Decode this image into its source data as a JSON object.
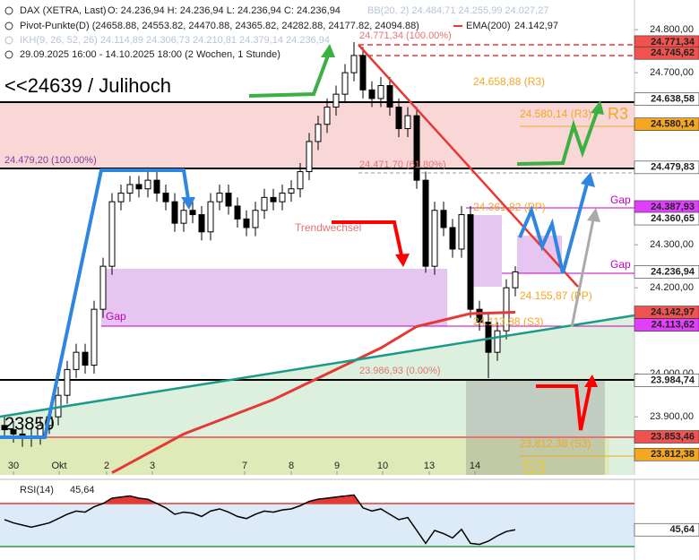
{
  "chart_data": [
    {
      "type": "candlestick",
      "title": "DAX (XETRA, Last)",
      "ohlc_label": "O: 24.236,94  H: 24.236,94  L: 24.236,94  C: 24.236,94",
      "bb_label": "BB(20, 2)  24.484,71  24.255,99  24.027,27",
      "pivot_label": "Pivot-Punkte(D)  (24658.88, 24553.82, 24470.88, 24365.82, 24282.88, 24177.82, 24094.88)",
      "ikh_label": "IKH(9, 26, 52, 26)  24.114,89  24.306,73  24.210,81  24.379,14  24.236,94",
      "period": "29.09.2025 16:00 - 14.10.2025 18:00  (2 Wochen, 1 Stunde)",
      "x": [
        0,
        1,
        2,
        3,
        4,
        5,
        6,
        7,
        8,
        9,
        10,
        11,
        12,
        13,
        14,
        15,
        16,
        17,
        18,
        19,
        20,
        21,
        22,
        23,
        24,
        25,
        26,
        27,
        28,
        29,
        30,
        31,
        32,
        33,
        34,
        35,
        36,
        37,
        38,
        39,
        40,
        41,
        42,
        43,
        44,
        45,
        46,
        47,
        48,
        49,
        50,
        51,
        52,
        53,
        54,
        55,
        56,
        57
      ],
      "open": [
        23880,
        23870,
        23860,
        23850,
        23855,
        23880,
        23900,
        23950,
        24010,
        24050,
        24020,
        24150,
        24250,
        24400,
        24420,
        24440,
        24430,
        24450,
        24420,
        24400,
        24350,
        24380,
        24370,
        24330,
        24400,
        24420,
        24390,
        24360,
        24340,
        24380,
        24410,
        24400,
        24420,
        24430,
        24470,
        24540,
        24580,
        24620,
        24650,
        24700,
        24740,
        24660,
        24640,
        24670,
        24620,
        24570,
        24600,
        24450,
        24250,
        24380,
        24340,
        24290,
        24370,
        24150,
        24120,
        24050,
        24100,
        24200
      ],
      "high": [
        23900,
        23890,
        23880,
        23875,
        23900,
        23920,
        23970,
        24030,
        24070,
        24070,
        24170,
        24270,
        24420,
        24440,
        24460,
        24460,
        24480,
        24470,
        24440,
        24420,
        24400,
        24400,
        24390,
        24420,
        24440,
        24440,
        24410,
        24380,
        24400,
        24430,
        24430,
        24440,
        24450,
        24490,
        24560,
        24600,
        24640,
        24670,
        24720,
        24771,
        24760,
        24680,
        24690,
        24690,
        24640,
        24620,
        24620,
        24470,
        24400,
        24400,
        24360,
        24390,
        24390,
        24170,
        24140,
        24120,
        24220,
        24250
      ],
      "low": [
        23850,
        23840,
        23830,
        23830,
        23835,
        23860,
        23880,
        23930,
        23990,
        24000,
        24000,
        24130,
        24230,
        24380,
        24400,
        24410,
        24410,
        24400,
        24380,
        24330,
        24330,
        24350,
        24310,
        24310,
        24380,
        24370,
        24340,
        24320,
        24320,
        24360,
        24380,
        24380,
        24400,
        24410,
        24450,
        24520,
        24560,
        24600,
        24630,
        24680,
        24640,
        24620,
        24620,
        24600,
        24550,
        24550,
        24430,
        24235,
        24230,
        24320,
        24270,
        24270,
        24130,
        24100,
        23990,
        24030,
        24080,
        24180
      ],
      "close": [
        23870,
        23860,
        23850,
        23855,
        23880,
        23900,
        23950,
        24010,
        24050,
        24020,
        24150,
        24250,
        24400,
        24420,
        24440,
        24430,
        24450,
        24420,
        24400,
        24350,
        24380,
        24370,
        24330,
        24400,
        24420,
        24390,
        24360,
        24340,
        24380,
        24410,
        24400,
        24420,
        24430,
        24470,
        24540,
        24580,
        24620,
        24650,
        24700,
        24740,
        24660,
        24640,
        24670,
        24620,
        24570,
        24600,
        24450,
        24250,
        24380,
        24340,
        24290,
        24370,
        24150,
        24120,
        24050,
        24100,
        24200,
        24237
      ],
      "ema": {
        "name": "EMA(200)",
        "color": "#e53935",
        "legend_value": "24.142,97",
        "x": [
          12,
          20,
          30,
          37,
          42,
          46,
          52,
          57
        ],
        "values": [
          23770,
          23860,
          23940,
          24010,
          24060,
          24110,
          24140,
          24143
        ]
      },
      "xlim": [
        -0.5,
        70.3
      ],
      "xticks": [
        {
          "value": 1,
          "label": "30"
        },
        {
          "value": 6.1,
          "label": "Okt"
        },
        {
          "value": 11.4,
          "label": "2"
        },
        {
          "value": 16.5,
          "label": "3"
        },
        {
          "value": 26.8,
          "label": "7"
        },
        {
          "value": 32,
          "label": "8"
        },
        {
          "value": 37.1,
          "label": "9"
        },
        {
          "value": 42.2,
          "label": "10"
        },
        {
          "value": 47.4,
          "label": "13"
        },
        {
          "value": 52.5,
          "label": "14"
        }
      ],
      "ylim": [
        23765,
        24869
      ],
      "yticks": [
        {
          "value": 24800,
          "label": "24.800,00"
        },
        {
          "value": 24700,
          "label": "24.700,00"
        },
        {
          "value": 24300,
          "label": "24.300,00"
        },
        {
          "value": 24200,
          "label": "24.200,00"
        },
        {
          "value": 24000,
          "label": "24.000,00"
        },
        {
          "value": 23900,
          "label": "23.900,00"
        }
      ],
      "levels": [
        {
          "value": 24771.34,
          "label": "24.771,34",
          "color": "#ef5350"
        },
        {
          "value": 24745.62,
          "label": "24.745,62",
          "color": "#ef5350"
        },
        {
          "value": 24638.58,
          "label": "24.638,58",
          "color": "#ffffff"
        },
        {
          "value": 24580.14,
          "label": "24.580,14",
          "color": "#f5a623"
        },
        {
          "value": 24479.83,
          "label": "24.479,83",
          "color": "#ffffff"
        },
        {
          "value": 24387.93,
          "label": "24.387,93",
          "color": "#e040fb"
        },
        {
          "value": 24360.65,
          "label": "24.360,65",
          "color": "#ffffff"
        },
        {
          "value": 24236.94,
          "label": "24.236,94",
          "color": "#ffffff"
        },
        {
          "value": 24142.97,
          "label": "24.142,97",
          "color": "#ef5350"
        },
        {
          "value": 24113.62,
          "label": "24.113,62",
          "color": "#e040fb"
        },
        {
          "value": 23984.74,
          "label": "23.984,74",
          "color": "#ffffff"
        },
        {
          "value": 23853.46,
          "label": "23.853,46",
          "color": "#ef5350"
        },
        {
          "value": 23812.38,
          "label": "23.812,38",
          "color": "#f5a623"
        }
      ],
      "annotations": [
        "<<24639 / Julihoch",
        "23850",
        "R3",
        "S3",
        "Gap",
        "Gap",
        "Gap",
        "Trendwechsel",
        "24.479,20 (100.00%)",
        "24.471,70 (61.80%)",
        "24.771,34 (100.00%)",
        "23.986,93 (0.00%)",
        "24.658,88 (R3)",
        "24.580,14 (R3)",
        "24.361,82 (PP)",
        "24.155,87 (PP)",
        "24.113,88 (S3)",
        "23.812,38 (S3)"
      ],
      "grid": false
    },
    {
      "type": "line",
      "title": "RSI(14)",
      "x": [
        0,
        1,
        2,
        3,
        4,
        5,
        6,
        7,
        8,
        9,
        10,
        11,
        12,
        13,
        14,
        15,
        16,
        17,
        18,
        19,
        20,
        21,
        22,
        23,
        24,
        25,
        26,
        27,
        28,
        29,
        30,
        31,
        32,
        33,
        34,
        35,
        36,
        37,
        38,
        39,
        40,
        41,
        42,
        43,
        44,
        45,
        46,
        47,
        48,
        49,
        50,
        51,
        52,
        53,
        54,
        55,
        56,
        57
      ],
      "values": [
        55,
        52,
        50,
        48,
        50,
        52,
        56,
        60,
        63,
        62,
        67,
        70,
        75,
        76,
        77,
        75,
        74,
        70,
        66,
        60,
        62,
        61,
        58,
        63,
        65,
        62,
        58,
        56,
        60,
        63,
        62,
        64,
        65,
        68,
        72,
        74,
        75,
        76,
        77,
        78,
        66,
        63,
        65,
        60,
        55,
        57,
        45,
        33,
        45,
        42,
        38,
        46,
        33,
        32,
        35,
        40,
        44,
        45.64
      ],
      "last_label": "45,64",
      "color": "#000000",
      "xlim": [
        -0.5,
        70.3
      ],
      "ylim": [
        17.5,
        88.3
      ],
      "hlines": [
        {
          "value": 70,
          "color": "#e53935"
        },
        {
          "value": 30,
          "color": "#2e9d3a"
        }
      ]
    }
  ]
}
